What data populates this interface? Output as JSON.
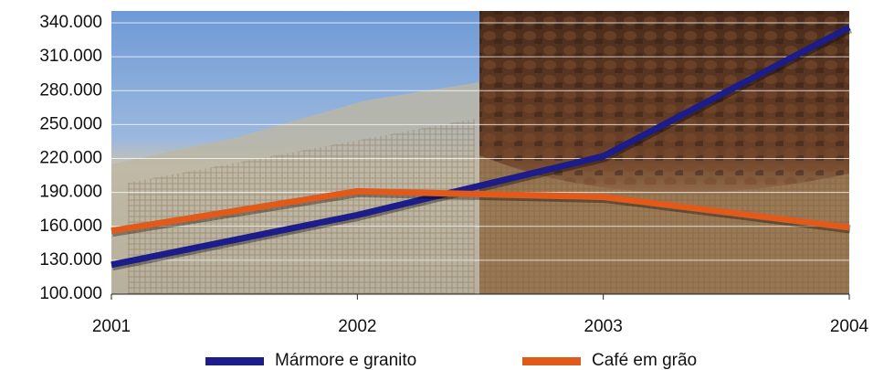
{
  "chart_data": {
    "type": "line",
    "categories": [
      "2001",
      "2002",
      "2003",
      "2004"
    ],
    "series": [
      {
        "name": "Mármore e granito",
        "color": "#1c1c8a",
        "values": [
          126000,
          170000,
          222000,
          336000
        ]
      },
      {
        "name": "Café em grão",
        "color": "#e05a1c",
        "values": [
          156000,
          191000,
          186000,
          159000
        ]
      }
    ],
    "ylim": [
      100000,
      340000
    ],
    "yticks": [
      {
        "value": 100000,
        "label": "100.000"
      },
      {
        "value": 130000,
        "label": "130.000"
      },
      {
        "value": 160000,
        "label": "160.000"
      },
      {
        "value": 190000,
        "label": "190.000"
      },
      {
        "value": 220000,
        "label": "220.000"
      },
      {
        "value": 250000,
        "label": "250.000"
      },
      {
        "value": 280000,
        "label": "280.000"
      },
      {
        "value": 310000,
        "label": "310.000"
      },
      {
        "value": 340000,
        "label": "340.000"
      }
    ],
    "grid": true,
    "legend": "bottom"
  }
}
